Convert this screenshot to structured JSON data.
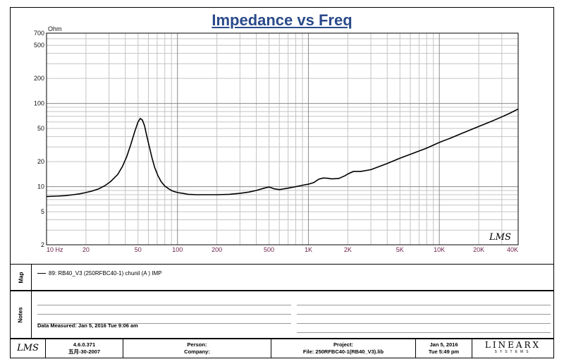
{
  "chart_data": {
    "type": "line",
    "title": "Impedance vs Freq",
    "y_unit": "Ohm",
    "x_scale": "log",
    "y_scale": "log",
    "xlim": [
      10,
      40000
    ],
    "ylim": [
      2,
      700
    ],
    "x_ticks": [
      {
        "v": 10,
        "label": "10 Hz"
      },
      {
        "v": 20,
        "label": "20"
      },
      {
        "v": 50,
        "label": "50"
      },
      {
        "v": 100,
        "label": "100"
      },
      {
        "v": 200,
        "label": "200"
      },
      {
        "v": 500,
        "label": "500"
      },
      {
        "v": 1000,
        "label": "1K"
      },
      {
        "v": 2000,
        "label": "2K"
      },
      {
        "v": 5000,
        "label": "5K"
      },
      {
        "v": 10000,
        "label": "10K"
      },
      {
        "v": 20000,
        "label": "20K"
      },
      {
        "v": 40000,
        "label": "40K"
      }
    ],
    "y_ticks": [
      {
        "v": 2,
        "label": "2"
      },
      {
        "v": 5,
        "label": "5"
      },
      {
        "v": 10,
        "label": "10"
      },
      {
        "v": 20,
        "label": "20"
      },
      {
        "v": 50,
        "label": "50"
      },
      {
        "v": 100,
        "label": "100"
      },
      {
        "v": 200,
        "label": "200"
      },
      {
        "v": 500,
        "label": "500"
      },
      {
        "v": 700,
        "label": "700"
      }
    ],
    "grid": true,
    "series": [
      {
        "name": "89: RB40_V3 (250RFBC40-1) chunil (A ) IMP",
        "x": [
          10,
          12,
          14,
          16,
          18,
          20,
          22,
          25,
          28,
          31,
          35,
          38,
          41,
          44,
          47,
          50,
          52,
          54,
          56,
          58,
          61,
          64,
          67,
          71,
          75,
          80,
          85,
          90,
          95,
          100,
          110,
          120,
          140,
          160,
          180,
          200,
          250,
          300,
          350,
          400,
          450,
          500,
          550,
          600,
          700,
          800,
          900,
          1000,
          1100,
          1200,
          1300,
          1400,
          1500,
          1700,
          1900,
          2000,
          2200,
          2500,
          3000,
          4000,
          5000,
          6000,
          8000,
          10000,
          12000,
          15000,
          20000,
          25000,
          30000,
          35000,
          40000
        ],
        "y": [
          7.6,
          7.7,
          7.8,
          8.0,
          8.2,
          8.5,
          8.8,
          9.4,
          10.3,
          11.6,
          14.0,
          17.5,
          23.0,
          32.0,
          45.0,
          60.0,
          66.0,
          63.0,
          54.0,
          42.0,
          30.0,
          22.0,
          17.0,
          13.5,
          11.5,
          10.2,
          9.5,
          9.0,
          8.7,
          8.5,
          8.3,
          8.1,
          8.0,
          8.0,
          8.0,
          8.0,
          8.1,
          8.3,
          8.6,
          9.0,
          9.5,
          9.9,
          9.4,
          9.2,
          9.6,
          10.0,
          10.4,
          10.7,
          11.2,
          12.3,
          12.7,
          12.6,
          12.4,
          12.5,
          13.5,
          14.2,
          15.2,
          15.2,
          16.0,
          19.0,
          22.0,
          24.5,
          29.0,
          34.0,
          38.0,
          44.0,
          53.0,
          61.0,
          69.0,
          77.0,
          86.0
        ]
      }
    ],
    "watermark": "LMS"
  },
  "legend": {
    "panel_label": "Map",
    "entry": "89: RB40_V3 (250RFBC40-1) chunil (A )  IMP"
  },
  "notes": {
    "panel_label": "Notes",
    "measured": "Data Measured: Jan  5, 2016  Tue  9:06 am"
  },
  "footer": {
    "logo": "LMS",
    "version": "4.6.0.371",
    "build_date": "五月-30-2007",
    "person_label": "Person:",
    "company_label": "Company:",
    "project_label": "Project:",
    "file_label": "File: 250RFBC40-1(RB40_V3).lib",
    "date": "Jan  5, 2016",
    "time": "Tue  5:49 pm",
    "brand": "LINEARX",
    "brand_sub": "SYSTEMS"
  }
}
